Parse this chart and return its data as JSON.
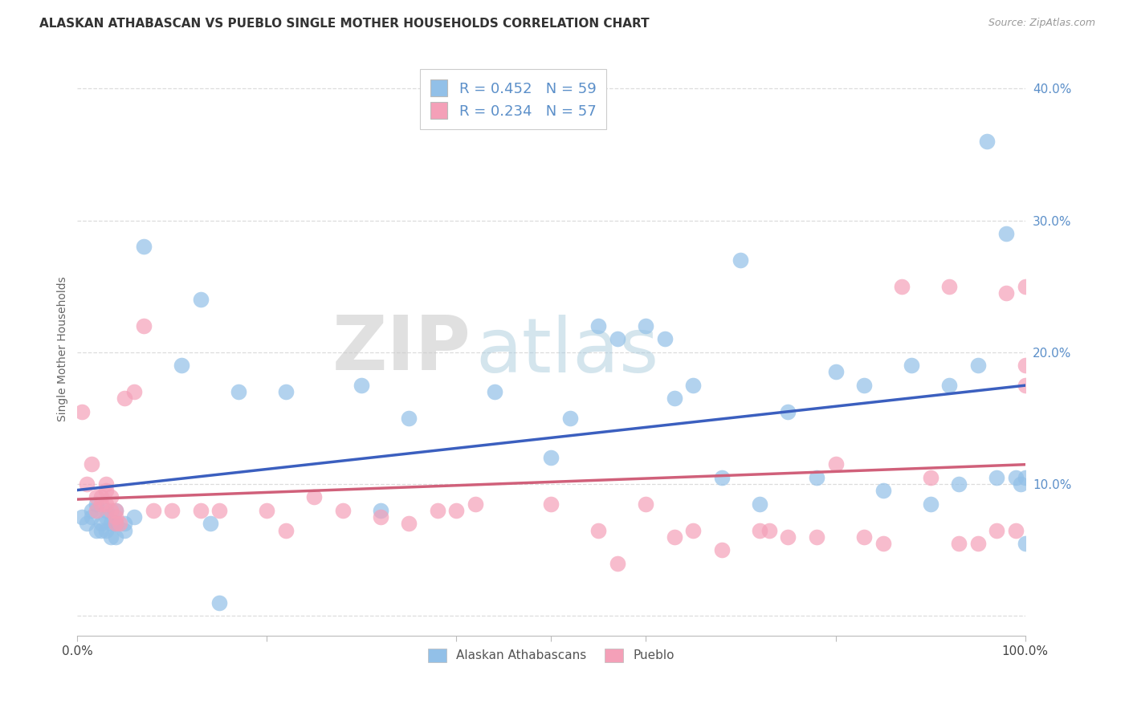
{
  "title": "ALASKAN ATHABASCAN VS PUEBLO SINGLE MOTHER HOUSEHOLDS CORRELATION CHART",
  "source": "Source: ZipAtlas.com",
  "ylabel": "Single Mother Households",
  "xlim": [
    0,
    1.0
  ],
  "ylim": [
    -0.015,
    0.42
  ],
  "blue_color": "#92C0E8",
  "pink_color": "#F4A0B8",
  "blue_line_color": "#3B5FBF",
  "pink_line_color": "#D0607A",
  "R_blue": 0.452,
  "N_blue": 59,
  "R_pink": 0.234,
  "N_pink": 57,
  "blue_scatter_x": [
    0.005,
    0.01,
    0.015,
    0.015,
    0.02,
    0.02,
    0.025,
    0.025,
    0.03,
    0.03,
    0.03,
    0.035,
    0.035,
    0.04,
    0.04,
    0.04,
    0.04,
    0.05,
    0.05,
    0.06,
    0.07,
    0.11,
    0.13,
    0.14,
    0.15,
    0.17,
    0.22,
    0.3,
    0.32,
    0.35,
    0.44,
    0.5,
    0.52,
    0.55,
    0.57,
    0.6,
    0.62,
    0.63,
    0.65,
    0.68,
    0.7,
    0.72,
    0.75,
    0.78,
    0.8,
    0.83,
    0.85,
    0.88,
    0.9,
    0.92,
    0.93,
    0.95,
    0.96,
    0.97,
    0.98,
    0.99,
    0.995,
    1.0,
    1.0
  ],
  "blue_scatter_y": [
    0.075,
    0.07,
    0.08,
    0.075,
    0.085,
    0.065,
    0.07,
    0.065,
    0.08,
    0.075,
    0.065,
    0.07,
    0.06,
    0.08,
    0.07,
    0.07,
    0.06,
    0.07,
    0.065,
    0.075,
    0.28,
    0.19,
    0.24,
    0.07,
    0.01,
    0.17,
    0.17,
    0.175,
    0.08,
    0.15,
    0.17,
    0.12,
    0.15,
    0.22,
    0.21,
    0.22,
    0.21,
    0.165,
    0.175,
    0.105,
    0.27,
    0.085,
    0.155,
    0.105,
    0.185,
    0.175,
    0.095,
    0.19,
    0.085,
    0.175,
    0.1,
    0.19,
    0.36,
    0.105,
    0.29,
    0.105,
    0.1,
    0.105,
    0.055
  ],
  "pink_scatter_x": [
    0.005,
    0.01,
    0.015,
    0.02,
    0.02,
    0.025,
    0.025,
    0.03,
    0.03,
    0.03,
    0.035,
    0.035,
    0.04,
    0.04,
    0.04,
    0.045,
    0.05,
    0.06,
    0.07,
    0.08,
    0.1,
    0.13,
    0.15,
    0.2,
    0.22,
    0.25,
    0.28,
    0.32,
    0.35,
    0.38,
    0.4,
    0.42,
    0.5,
    0.55,
    0.57,
    0.6,
    0.63,
    0.65,
    0.68,
    0.72,
    0.73,
    0.75,
    0.78,
    0.8,
    0.83,
    0.85,
    0.87,
    0.9,
    0.92,
    0.93,
    0.95,
    0.97,
    0.98,
    0.99,
    1.0,
    1.0,
    1.0
  ],
  "pink_scatter_y": [
    0.155,
    0.1,
    0.115,
    0.09,
    0.08,
    0.09,
    0.085,
    0.1,
    0.095,
    0.085,
    0.09,
    0.08,
    0.08,
    0.075,
    0.07,
    0.07,
    0.165,
    0.17,
    0.22,
    0.08,
    0.08,
    0.08,
    0.08,
    0.08,
    0.065,
    0.09,
    0.08,
    0.075,
    0.07,
    0.08,
    0.08,
    0.085,
    0.085,
    0.065,
    0.04,
    0.085,
    0.06,
    0.065,
    0.05,
    0.065,
    0.065,
    0.06,
    0.06,
    0.115,
    0.06,
    0.055,
    0.25,
    0.105,
    0.25,
    0.055,
    0.055,
    0.065,
    0.245,
    0.065,
    0.175,
    0.25,
    0.19
  ],
  "background_color": "#FFFFFF",
  "grid_color": "#DDDDDD",
  "watermark_zip": "ZIP",
  "watermark_atlas": "atlas",
  "legend_label_blue": "Alaskan Athabascans",
  "legend_label_pink": "Pueblo",
  "ytick_color": "#5B8FC9"
}
